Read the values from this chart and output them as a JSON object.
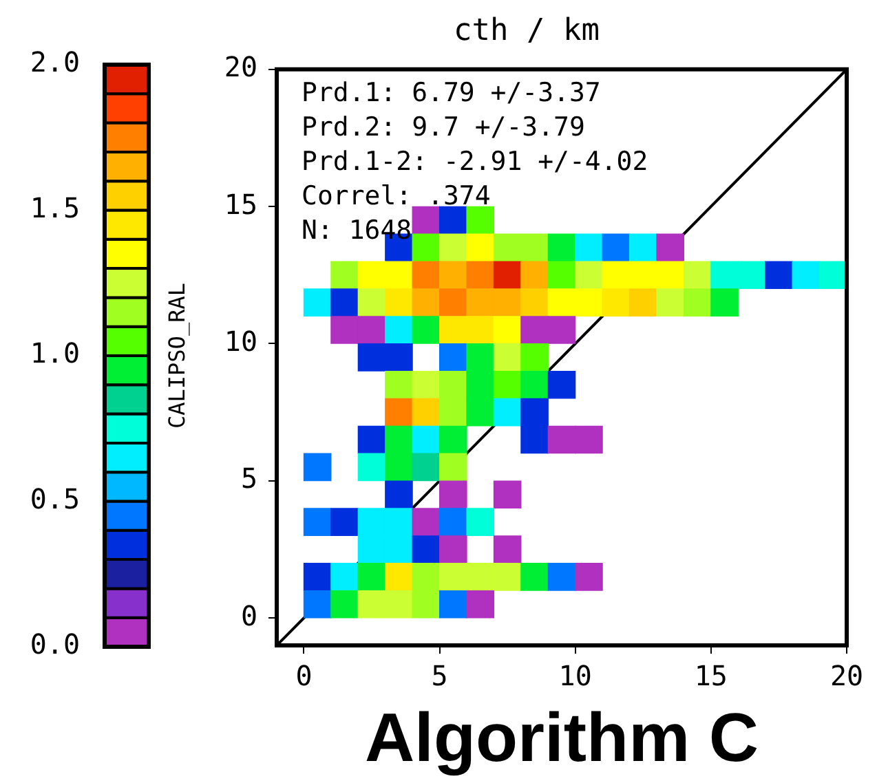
{
  "chart_data": {
    "type": "scatter",
    "title": "cth / km",
    "xlabel": "Algorithm C",
    "clabel": "CALIPSO_RAL",
    "clim": [
      0,
      2
    ],
    "cticks": [
      {
        "value": 0,
        "label": "0.0"
      },
      {
        "value": 0.5,
        "label": "0.5"
      },
      {
        "value": 1,
        "label": "1.0"
      },
      {
        "value": 1.5,
        "label": "1.5"
      },
      {
        "value": 2,
        "label": "2.0"
      }
    ],
    "xlim": [
      -1,
      20
    ],
    "ylim": [
      -1,
      20
    ],
    "xticks": [
      0,
      5,
      10,
      15,
      20
    ],
    "yticks": [
      0,
      5,
      10,
      15,
      20
    ],
    "series": [
      {
        "marker": "square",
        "colors": [
          "#b030c0",
          "#0030dd",
          "#55ff00",
          "#0030dd",
          "#55ff00",
          "#ccff33",
          "#ffff00",
          "#a0ff20",
          "#a0ff20",
          "#00ee33",
          "#00eeff",
          "#0077ff",
          "#00eeff",
          "#b030c0",
          "#a0ff20",
          "#ffff00",
          "#ffff00",
          "#ff8000",
          "#ffb000",
          "#ff8000",
          "#e02000",
          "#ffb000",
          "#55ff00",
          "#ccff33",
          "#ffff00",
          "#ffff00",
          "#ffff00",
          "#ccff33",
          "#00ffd8",
          "#00ffd8",
          "#0030dd",
          "#00eeff",
          "#00ffd8",
          "#00eeff",
          "#0030dd",
          "#ccff33",
          "#ffe800",
          "#ffb000",
          "#ff8000",
          "#ffb000",
          "#ffb000",
          "#ffd000",
          "#ffff00",
          "#ffff00",
          "#ffe800",
          "#ffd000",
          "#ccff33",
          "#a0ff20",
          "#00ee33",
          "#b030c0",
          "#b030c0",
          "#00eeff",
          "#00ee33",
          "#ffe800",
          "#ffe800",
          "#ffff00",
          "#b030c0",
          "#b030c0",
          "#0030dd",
          "#0030dd",
          "#0077ff",
          "#00ee33",
          "#ccff33",
          "#55ff00",
          "#a0ff20",
          "#ccff33",
          "#a0ff20",
          "#00ee33",
          "#55ff00",
          "#00ee33",
          "#0030dd",
          "#ff8000",
          "#ffd000",
          "#a0ff20",
          "#00ee33",
          "#00eeff",
          "#0030dd",
          "#0030dd",
          "#00ee33",
          "#00eeff",
          "#00ee33",
          "#0030dd",
          "#b030c0",
          "#b030c0",
          "#0077ff",
          "#00ffd8",
          "#00ee33",
          "#00d090",
          "#a0ff20",
          "#0030dd",
          "#b030c0",
          "#b030c0",
          "#0077ff",
          "#0030dd",
          "#00eeff",
          "#00eeff",
          "#b030c0",
          "#0077ff",
          "#00ffd8",
          "#00eeff",
          "#00eeff",
          "#0030dd",
          "#b030c0",
          "#b030c0",
          "#0030dd",
          "#00eeff",
          "#00ee33",
          "#ffe800",
          "#a0ff20",
          "#ccff33",
          "#ccff33",
          "#ccff33",
          "#00ee33",
          "#0077ff",
          "#b030c0",
          "#0077ff",
          "#00ee33",
          "#ccff33",
          "#ccff33",
          "#a0ff20",
          "#0077ff",
          "#b030c0"
        ],
        "x": [
          4.5,
          5.5,
          6.5,
          3.5,
          4.5,
          5.5,
          6.5,
          7.5,
          8.5,
          9.5,
          10.5,
          11.5,
          12.5,
          13.5,
          1.5,
          2.5,
          3.5,
          4.5,
          5.5,
          6.5,
          7.5,
          8.5,
          9.5,
          10.5,
          11.5,
          12.5,
          13.5,
          14.5,
          15.5,
          16.5,
          17.5,
          18.5,
          19.5,
          0.5,
          1.5,
          2.5,
          3.5,
          4.5,
          5.5,
          6.5,
          7.5,
          8.5,
          9.5,
          10.5,
          11.5,
          12.5,
          13.5,
          14.5,
          15.5,
          1.5,
          2.5,
          3.5,
          4.5,
          5.5,
          6.5,
          7.5,
          8.5,
          9.5,
          2.5,
          3.5,
          5.5,
          6.5,
          7.5,
          8.5,
          3.5,
          4.5,
          5.5,
          6.5,
          7.5,
          8.5,
          9.5,
          3.5,
          4.5,
          5.5,
          6.5,
          7.5,
          8.5,
          2.5,
          3.5,
          4.5,
          5.5,
          8.5,
          9.5,
          10.5,
          0.5,
          2.5,
          3.5,
          4.5,
          5.5,
          3.5,
          5.5,
          7.5,
          0.5,
          1.5,
          2.5,
          3.5,
          4.5,
          5.5,
          6.5,
          2.5,
          3.5,
          4.5,
          5.5,
          7.5,
          0.5,
          1.5,
          2.5,
          3.5,
          4.5,
          5.5,
          6.5,
          7.5,
          8.5,
          9.5,
          10.5,
          0.5,
          1.5,
          2.5,
          3.5,
          4.5,
          5.5,
          6.5
        ],
        "values": [
          14.5,
          14.5,
          14.5,
          13.5,
          13.5,
          13.5,
          13.5,
          13.5,
          13.5,
          13.5,
          13.5,
          13.5,
          13.5,
          13.5,
          12.5,
          12.5,
          12.5,
          12.5,
          12.5,
          12.5,
          12.5,
          12.5,
          12.5,
          12.5,
          12.5,
          12.5,
          12.5,
          12.5,
          12.5,
          12.5,
          12.5,
          12.5,
          12.5,
          11.5,
          11.5,
          11.5,
          11.5,
          11.5,
          11.5,
          11.5,
          11.5,
          11.5,
          11.5,
          11.5,
          11.5,
          11.5,
          11.5,
          11.5,
          11.5,
          10.5,
          10.5,
          10.5,
          10.5,
          10.5,
          10.5,
          10.5,
          10.5,
          10.5,
          9.5,
          9.5,
          9.5,
          9.5,
          9.5,
          9.5,
          8.5,
          8.5,
          8.5,
          8.5,
          8.5,
          8.5,
          8.5,
          7.5,
          7.5,
          7.5,
          7.5,
          7.5,
          7.5,
          6.5,
          6.5,
          6.5,
          6.5,
          6.5,
          6.5,
          6.5,
          5.5,
          5.5,
          5.5,
          5.5,
          5.5,
          4.5,
          4.5,
          4.5,
          3.5,
          3.5,
          3.5,
          3.5,
          3.5,
          3.5,
          3.5,
          2.5,
          2.5,
          2.5,
          2.5,
          2.5,
          1.5,
          1.5,
          1.5,
          1.5,
          1.5,
          1.5,
          1.5,
          1.5,
          1.5,
          1.5,
          1.5,
          0.5,
          0.5,
          0.5,
          0.5,
          0.5,
          0.5,
          0.5
        ],
        "cvalues": [
          0.05,
          0.35,
          1.05,
          0.35,
          1.05,
          1.25,
          1.35,
          1.15,
          1.15,
          0.95,
          0.65,
          0.45,
          0.65,
          0.05,
          1.15,
          1.35,
          1.35,
          1.75,
          1.65,
          1.75,
          1.95,
          1.65,
          1.05,
          1.25,
          1.35,
          1.35,
          1.35,
          1.25,
          0.75,
          0.75,
          0.35,
          0.65,
          0.75,
          0.65,
          0.35,
          1.25,
          1.45,
          1.65,
          1.75,
          1.65,
          1.65,
          1.55,
          1.35,
          1.35,
          1.45,
          1.55,
          1.25,
          1.15,
          0.95,
          0.05,
          0.05,
          0.65,
          0.95,
          1.45,
          1.45,
          1.35,
          0.05,
          0.05,
          0.35,
          0.35,
          0.45,
          0.95,
          1.25,
          1.05,
          1.15,
          1.25,
          1.15,
          0.95,
          1.05,
          0.95,
          0.35,
          1.75,
          1.55,
          1.15,
          0.95,
          0.65,
          0.35,
          0.35,
          0.95,
          0.65,
          0.95,
          0.35,
          0.05,
          0.05,
          0.45,
          0.75,
          0.95,
          0.85,
          1.15,
          0.35,
          0.05,
          0.05,
          0.45,
          0.35,
          0.65,
          0.65,
          0.05,
          0.45,
          0.75,
          0.65,
          0.65,
          0.35,
          0.05,
          0.05,
          0.35,
          0.65,
          0.95,
          1.45,
          1.15,
          1.25,
          1.25,
          1.25,
          0.95,
          0.45,
          0.05,
          0.45,
          0.95,
          1.25,
          1.25,
          1.15,
          0.45,
          0.05
        ]
      },
      {
        "type": "line",
        "x": [
          -1,
          20
        ],
        "values": [
          -1,
          20
        ],
        "color": "#000000",
        "line_style": "solid"
      }
    ],
    "annotations": [
      "Prd.1: 6.79 +/-3.37",
      "Prd.2: 9.7 +/-3.79",
      "Prd.1-2: -2.91 +/-4.02",
      "Correl: .374",
      "N: 1648"
    ],
    "grid": false,
    "legend": false
  }
}
